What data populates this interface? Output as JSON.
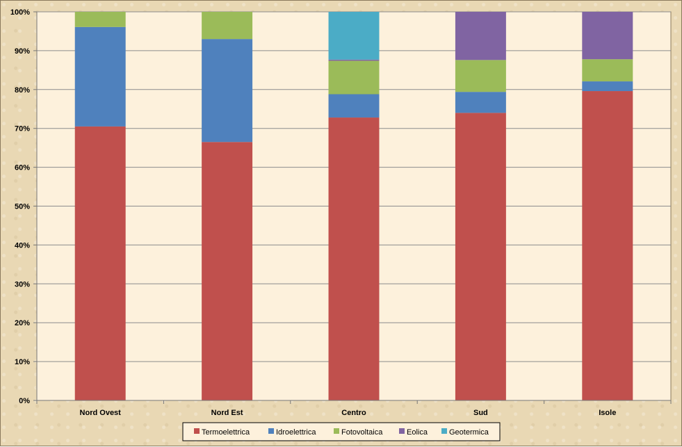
{
  "chart_data": {
    "type": "bar",
    "stacked": true,
    "categories": [
      "Nord Ovest",
      "Nord Est",
      "Centro",
      "Sud",
      "Isole"
    ],
    "series": [
      {
        "name": "Termoelettrica",
        "color": "#C0504D",
        "values": [
          70.5,
          66.5,
          72.8,
          74.0,
          79.6
        ]
      },
      {
        "name": "Idroelettrica",
        "color": "#4F81BD",
        "values": [
          25.6,
          26.5,
          6.0,
          5.4,
          2.5
        ]
      },
      {
        "name": "Fotovoltaica",
        "color": "#9BBB59",
        "values": [
          3.9,
          7.0,
          8.6,
          8.2,
          5.7
        ]
      },
      {
        "name": "Eolica",
        "color": "#8064A2",
        "values": [
          0.0,
          0.0,
          0.3,
          12.4,
          12.2
        ]
      },
      {
        "name": "Geotermica",
        "color": "#4BACC6",
        "values": [
          0.0,
          0.0,
          12.3,
          0.0,
          0.0
        ]
      }
    ],
    "ylim": [
      0,
      100
    ],
    "yticks": [
      "0%",
      "10%",
      "20%",
      "30%",
      "40%",
      "50%",
      "60%",
      "70%",
      "80%",
      "90%",
      "100%"
    ],
    "grid": true,
    "legend_position": "bottom",
    "plot_background": "#FDF1DC"
  }
}
